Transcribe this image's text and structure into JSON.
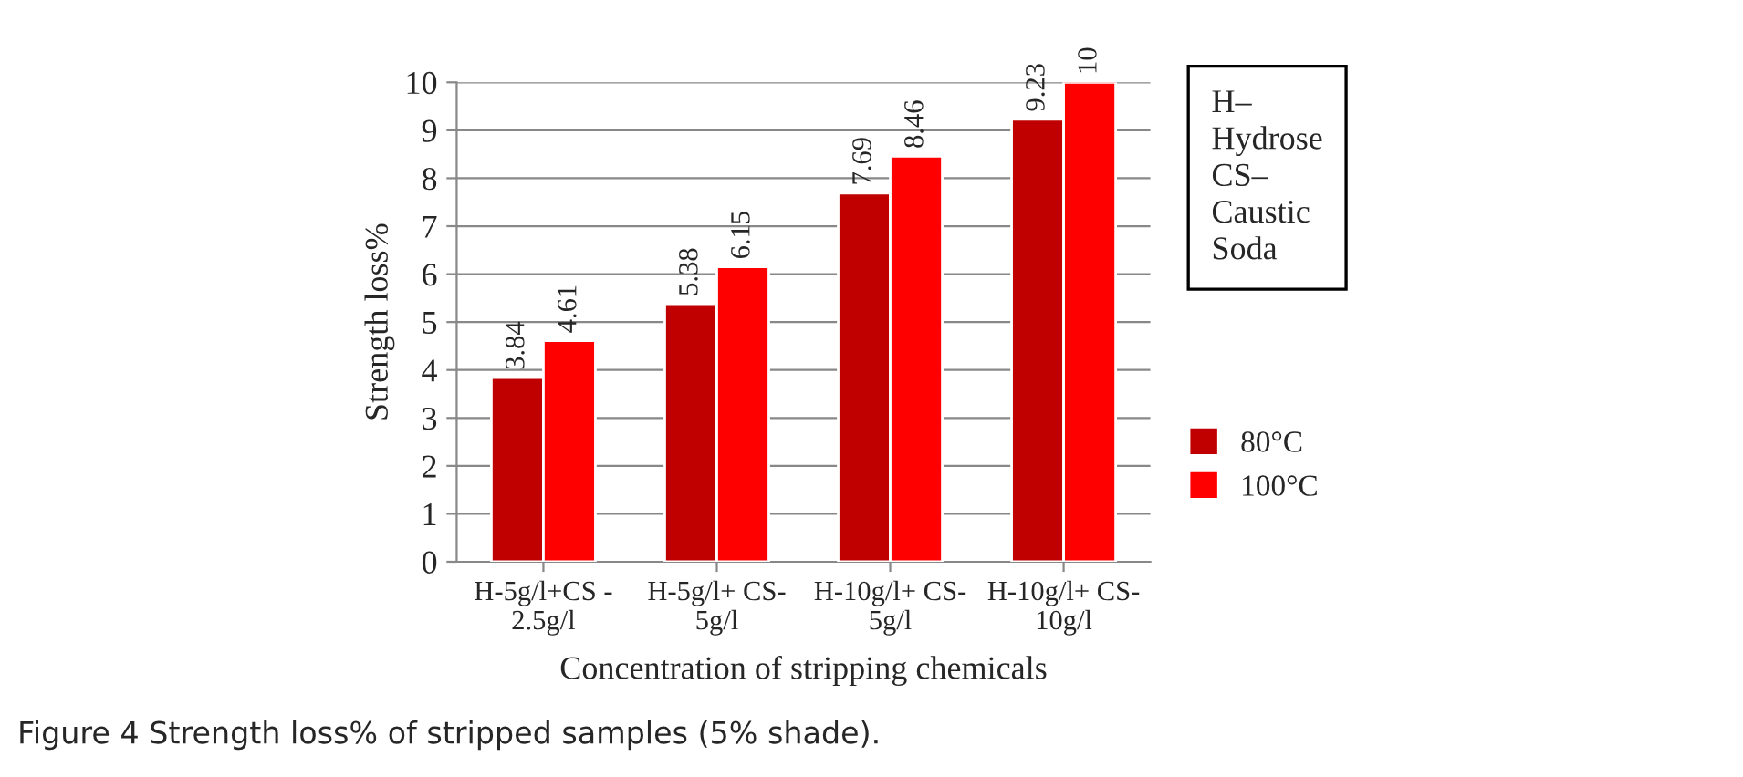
{
  "chart_data": {
    "type": "bar",
    "xlabel": "Concentration of stripping chemicals",
    "ylabel": "Strength loss%",
    "categories": [
      "H-5g/l+CS -\n2.5g/l",
      "H-5g/l+ CS-\n5g/l",
      "H-10g/l+ CS-\n5g/l",
      "H-10g/l+ CS-\n10g/l"
    ],
    "series": [
      {
        "name": "80°C",
        "color": "#c00000",
        "values": [
          3.84,
          5.38,
          7.69,
          9.23
        ]
      },
      {
        "name": "100°C",
        "color": "#ff0000",
        "values": [
          4.61,
          6.15,
          8.46,
          10
        ]
      }
    ],
    "ylim": [
      0,
      10
    ],
    "yticks": [
      0,
      1,
      2,
      3,
      4,
      5,
      6,
      7,
      8,
      9,
      10
    ],
    "grid": "y",
    "legend": "right",
    "data_labels": true,
    "annotations": [
      "H–\nHydrose\nCS–\nCaustic\nSoda",
      "Figure 4 Strength loss% of stripped samples (5% shade)."
    ]
  }
}
